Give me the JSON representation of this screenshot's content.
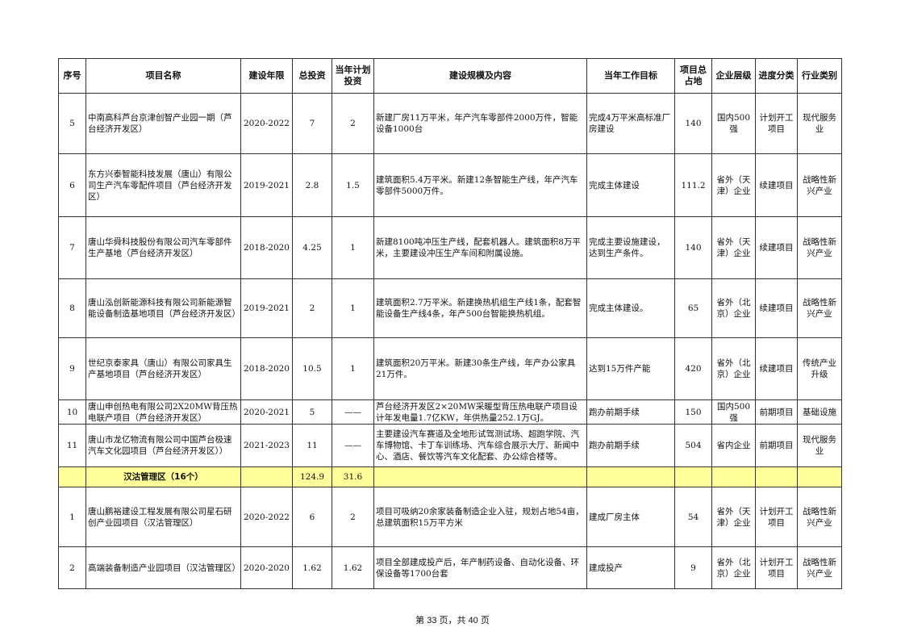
{
  "table": {
    "headers": [
      "序号",
      "项目名称",
      "建设年限",
      "总投资",
      "当年计划投资",
      "建设规模及内容",
      "当年工作目标",
      "项目总占地",
      "企业层级",
      "进度分类",
      "行业类别"
    ],
    "rows": [
      {
        "no": "5",
        "name": "中南高科芦台京津创智产业园一期（芦台经济开发区）",
        "years": "2020-2022",
        "total": "7",
        "plan": "2",
        "scale": "新建厂房11万平米，年产汽车零部件2000万件，智能设备1000台",
        "goal": "完成4万平米高标准厂房建设",
        "area": "140",
        "level": "国内500强",
        "progress": "计划开工项目",
        "industry": "现代服务业"
      },
      {
        "no": "6",
        "name": "东方兴泰智能科技发展（唐山）有限公司生产汽车零配件项目（芦台经济开发区）",
        "years": "2019-2021",
        "total": "2.8",
        "plan": "1.5",
        "scale": "建筑面积5.4万平米。新建12条智能生产线，年产汽车零部件5000万件。",
        "goal": "完成主体建设",
        "area": "111.2",
        "level": "省外（天津）企业",
        "progress": "续建项目",
        "industry": "战略性新兴产业"
      },
      {
        "no": "7",
        "name": "唐山华舜科技股份有限公司汽车零部件生产基地（芦台经济开发区）",
        "years": "2018-2020",
        "total": "4.25",
        "plan": "1",
        "scale": "新建8100吨冲压生产线，配套机器人。建筑面积8万平米，主要建设冲压生产车间和附属设施。",
        "goal": "完成主要设施建设，达到生产条件。",
        "area": "140",
        "level": "省外（天津）企业",
        "progress": "续建项目",
        "industry": "战略性新兴产业"
      },
      {
        "no": "8",
        "name": "唐山泓创新能源科技有限公司新能源智能设备制造基地项目（芦台经济开发区）",
        "years": "2019-2021",
        "total": "2",
        "plan": "1",
        "scale": "建筑面积2.7万平米。新建换热机组生产线1条，配套智能设备生产线4条，年产500台智能换热机组。",
        "goal": "完成主体建设。",
        "area": "65",
        "level": "省外（北京）企业",
        "progress": "续建项目",
        "industry": "战略性新兴产业"
      },
      {
        "no": "9",
        "name": "世纪京泰家具（唐山）有限公司家具生产基地项目（芦台经济开发区）",
        "years": "2018-2020",
        "total": "10.5",
        "plan": "1",
        "scale": "建筑面积20万平米。新建30条生产线，年产办公家具21万件。",
        "goal": "达到15万件产能",
        "area": "420",
        "level": "省外（北京）企业",
        "progress": "续建项目",
        "industry": "传统产业升级"
      },
      {
        "no": "10",
        "name": "唐山申创热电有限公司2X20MW背压热电联产项目（芦台经济开发区）",
        "years": "2020-2021",
        "total": "5",
        "plan": "——",
        "scale": "芦台经济开发区2×20MW采暖型背压热电联产项目设计年发电量1.7亿KW，年供热量252.1万GJ。",
        "goal": "跑办前期手续",
        "area": "150",
        "level": "国内500强",
        "progress": "前期项目",
        "industry": "基础设施"
      },
      {
        "no": "11",
        "name": "唐山市龙亿物流有限公司中国芦台极速汽车文化园项目（芦台经济开发区））",
        "years": "2021-2023",
        "total": "11",
        "plan": "——",
        "scale": "主要建设汽车赛道及全地形试驾测试场、超跑学院、汽车博物馆、卡丁车训练场、汽车综合展示大厅、新闻中心、酒店、餐饮等汽车文化配套、办公综合楼等。",
        "goal": "跑办前期手续",
        "area": "504",
        "level": "省内企业",
        "progress": "前期项目",
        "industry": "现代服务业"
      }
    ],
    "section": {
      "title": "汉沽管理区（16个）",
      "total": "124.9",
      "plan": "31.6",
      "color": "#ffff99"
    },
    "rows2": [
      {
        "no": "1",
        "name": "唐山鹏裕建设工程发展有限公司星石研创产业园项目（汉沽管理区）",
        "years": "2020-2022",
        "total": "6",
        "plan": "2",
        "scale": "项目可吸纳20余家装备制造企业入驻，规划占地54亩，总建筑面积15万平方米",
        "goal": "建成厂房主体",
        "area": "54",
        "level": "省外（天津）企业",
        "progress": "计划开工项目",
        "industry": "战略性新兴产业"
      },
      {
        "no": "2",
        "name": "高端装备制造产业园项目（汉沽管理区）",
        "years": "2020-2020",
        "total": "1.62",
        "plan": "1.62",
        "scale": "项目全部建成投产后，年产制药设备、自动化设备、环保设备等1700台套",
        "goal": "建成投产",
        "area": "9",
        "level": "省外（北京）企业",
        "progress": "计划开工项目",
        "industry": "战略性新兴产业"
      }
    ]
  },
  "footer": {
    "page_label": "第 33 页，共 40 页"
  }
}
